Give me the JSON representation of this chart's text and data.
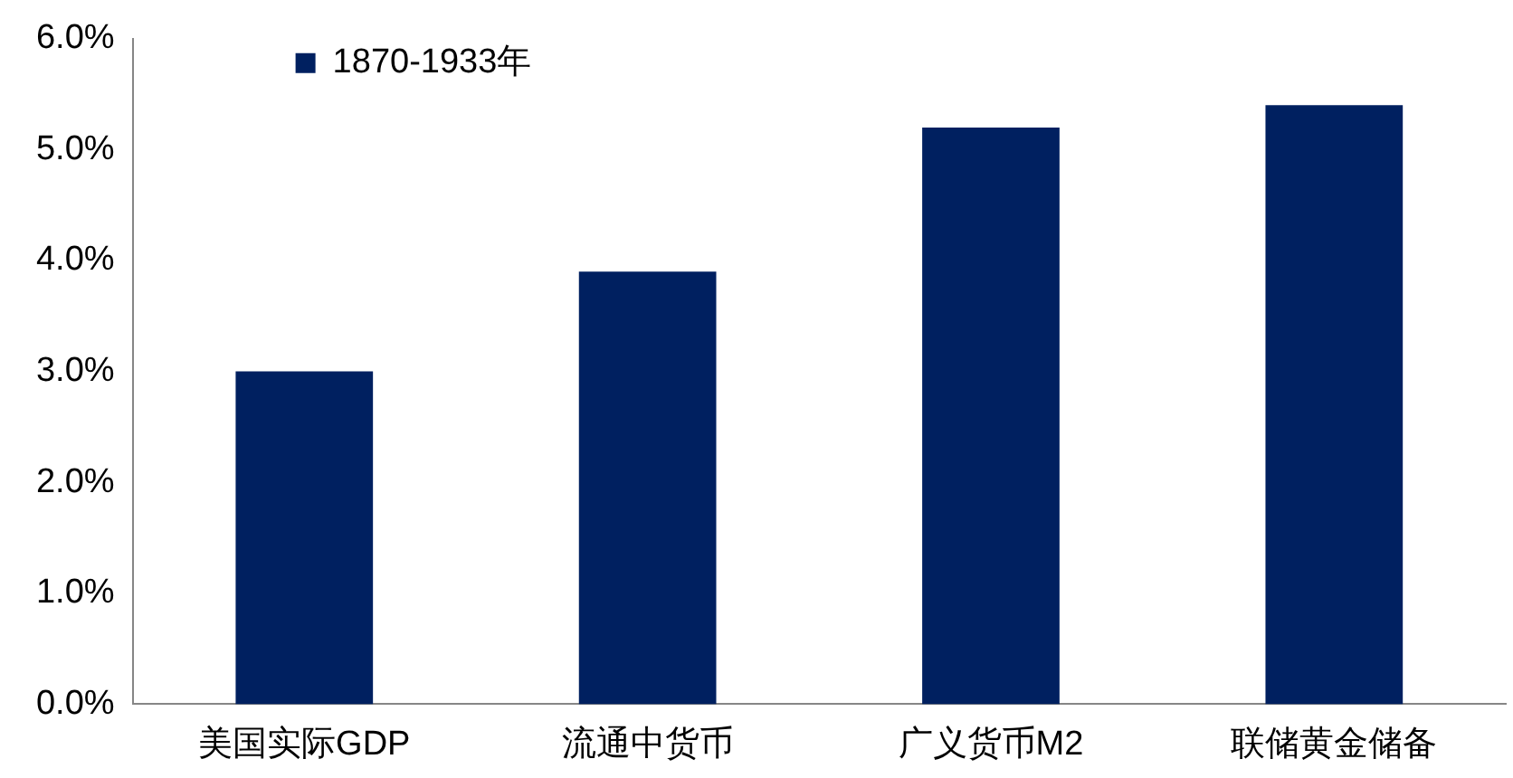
{
  "chart_data": {
    "type": "bar",
    "categories": [
      "美国实际GDP",
      "流通中货币",
      "广义货币M2",
      "联储黄金储备"
    ],
    "series": [
      {
        "name": "1870-1933年",
        "color": "#002060",
        "values": [
          3.0,
          3.9,
          5.2,
          5.4
        ]
      }
    ],
    "ylim": [
      0,
      6
    ],
    "yticks": [
      {
        "value": 0,
        "label": "0.0%"
      },
      {
        "value": 1,
        "label": "1.0%"
      },
      {
        "value": 2,
        "label": "2.0%"
      },
      {
        "value": 3,
        "label": "3.0%"
      },
      {
        "value": 4,
        "label": "4.0%"
      },
      {
        "value": 5,
        "label": "5.0%"
      },
      {
        "value": 6,
        "label": "6.0%"
      }
    ],
    "grid": false,
    "legend": "top left"
  }
}
